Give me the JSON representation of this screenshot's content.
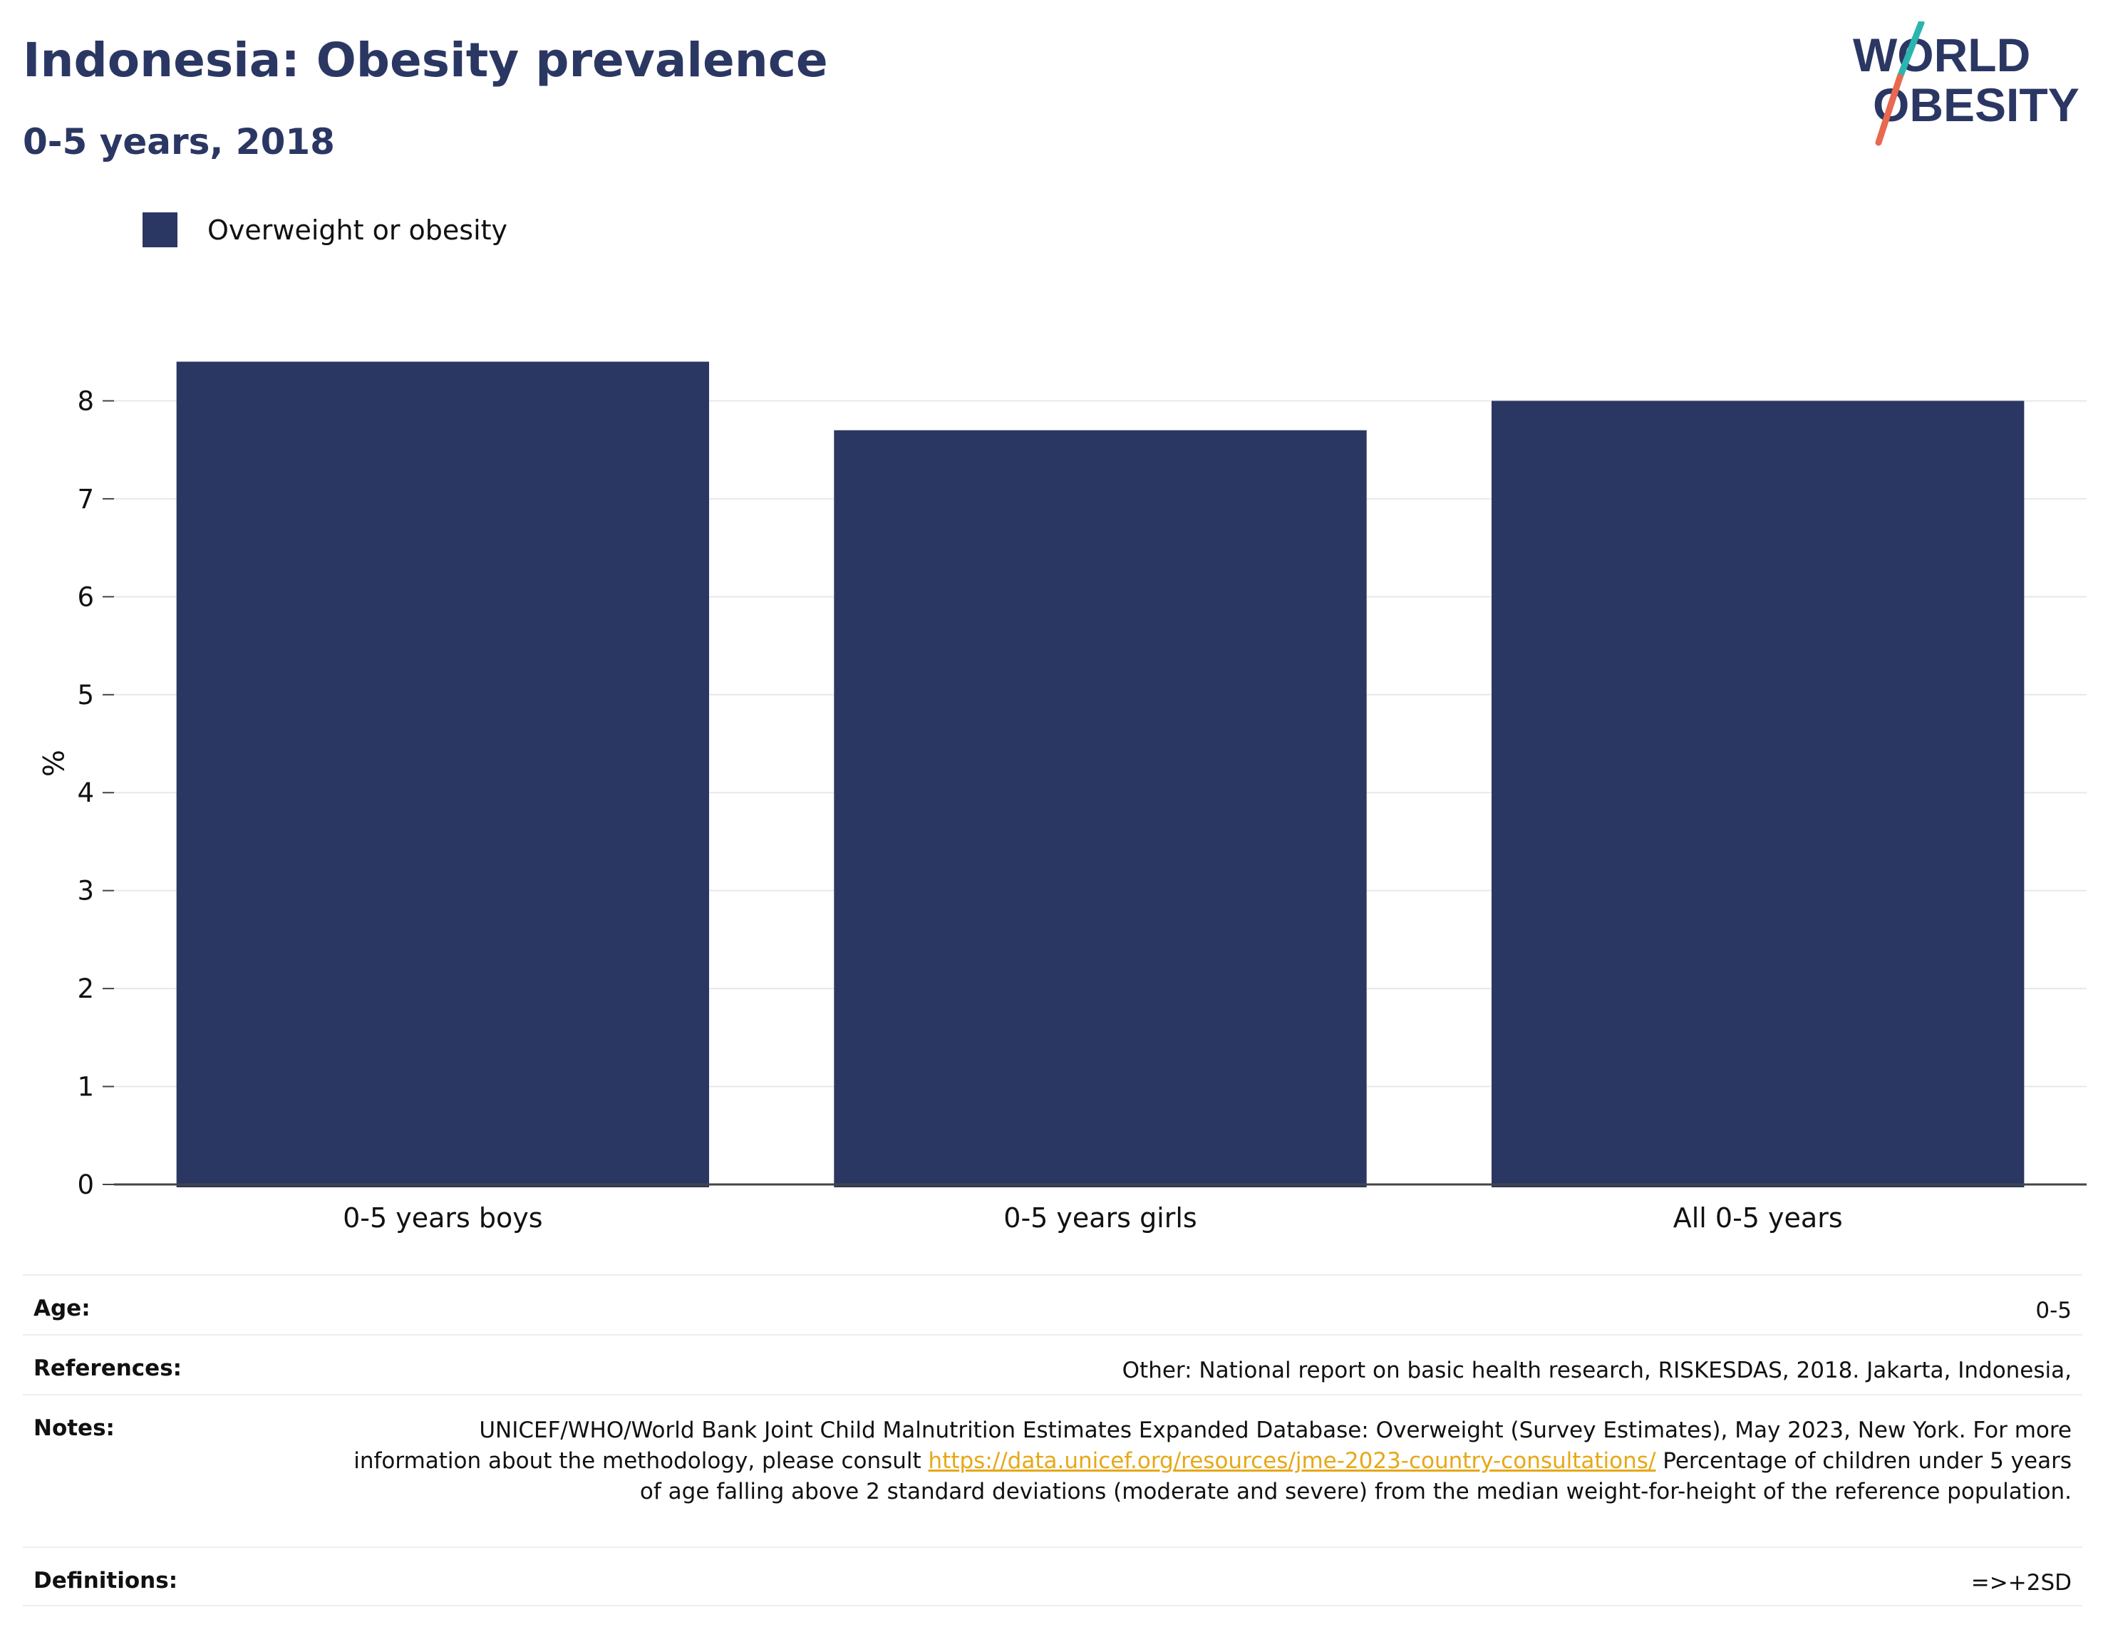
{
  "header": {
    "title": "Indonesia: Obesity prevalence",
    "subtitle": "0-5 years, 2018"
  },
  "logo": {
    "line1": "WORLD",
    "line2": "OBESITY",
    "colors": {
      "text": "#2b3763",
      "slash_top": "#2bb5b0",
      "slash_bottom": "#e8694f"
    }
  },
  "colors": {
    "bar": "#2b3763",
    "grid": "#e8e8e8",
    "axis": "#444444",
    "link": "#e6a817"
  },
  "chart_data": {
    "type": "bar",
    "categories": [
      "0-5 years boys",
      "0-5 years girls",
      "All 0-5 years"
    ],
    "series": [
      {
        "name": "Overweight or obesity",
        "values": [
          8.4,
          7.7,
          8.0
        ]
      }
    ],
    "xlabel": "",
    "ylabel": "%",
    "ylim": [
      0,
      8.6
    ],
    "yticks": [
      0,
      1,
      2,
      3,
      4,
      5,
      6,
      7,
      8
    ],
    "grid": true,
    "legend": "top-left"
  },
  "meta": {
    "age_label": "Age:",
    "age_value": "0-5",
    "references_label": "References:",
    "references_value": "Other: National report on basic health research, RISKESDAS, 2018. Jakarta, Indonesia,",
    "notes_label": "Notes:",
    "notes_text_1": "UNICEF/WHO/World Bank Joint Child Malnutrition Estimates Expanded Database: Overweight (Survey Estimates), May 2023, New York. For more information about the methodology, please consult",
    "notes_link": "https://data.unicef.org/resources/jme-2023-country-consultations/",
    "notes_text_2": "Percentage of children under 5 years of age falling above 2 standard deviations (moderate and severe) from the median weight-for-height of the reference population.",
    "definitions_label": "Definitions:",
    "definitions_value": "=>+2SD"
  }
}
